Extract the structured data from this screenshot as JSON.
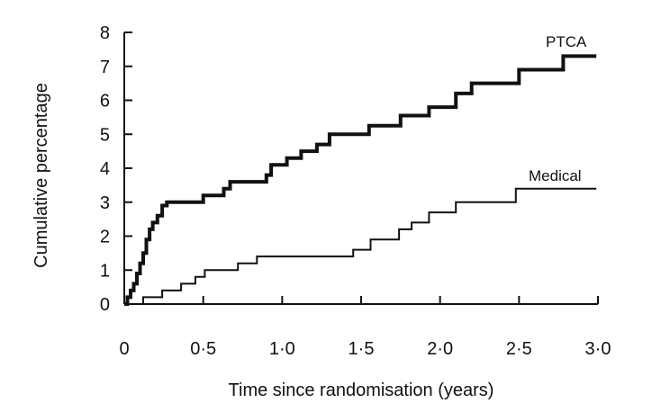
{
  "chart_data": {
    "type": "line",
    "title": "",
    "xlabel": "Time since randomisation (years)",
    "ylabel": "Cumulative percentage",
    "xlim": [
      0,
      3.0
    ],
    "ylim": [
      0,
      8
    ],
    "xticks": [
      0,
      0.5,
      1.0,
      1.5,
      2.0,
      2.5,
      3.0
    ],
    "xtick_labels": [
      "0",
      "0·5",
      "1·0",
      "1·5",
      "2·0",
      "2·5",
      "3·0"
    ],
    "yticks": [
      0,
      1,
      2,
      3,
      4,
      5,
      6,
      7,
      8
    ],
    "ytick_labels": [
      "0",
      "1",
      "2",
      "3",
      "4",
      "5",
      "6",
      "7",
      "8"
    ],
    "grid": false,
    "series": [
      {
        "name": "PTCA",
        "color": "#111111",
        "step": true,
        "bold": true,
        "x": [
          0,
          0.02,
          0.04,
          0.06,
          0.08,
          0.1,
          0.12,
          0.14,
          0.16,
          0.18,
          0.21,
          0.24,
          0.27,
          0.5,
          0.63,
          0.67,
          0.9,
          0.93,
          1.03,
          1.12,
          1.22,
          1.3,
          1.4,
          1.55,
          1.75,
          1.93,
          2.1,
          2.2,
          2.5,
          2.78,
          2.99
        ],
        "y": [
          0,
          0.2,
          0.4,
          0.6,
          0.9,
          1.2,
          1.5,
          1.9,
          2.2,
          2.4,
          2.6,
          2.9,
          3.0,
          3.2,
          3.4,
          3.6,
          3.8,
          4.1,
          4.3,
          4.5,
          4.7,
          5.0,
          5.0,
          5.25,
          5.55,
          5.8,
          6.2,
          6.5,
          6.9,
          7.3,
          7.3
        ]
      },
      {
        "name": "Medical",
        "color": "#111111",
        "step": true,
        "bold": false,
        "x": [
          0,
          0.12,
          0.24,
          0.36,
          0.45,
          0.51,
          0.72,
          0.84,
          1.27,
          1.45,
          1.56,
          1.74,
          1.82,
          1.93,
          2.1,
          2.48,
          2.99
        ],
        "y": [
          0,
          0.2,
          0.4,
          0.6,
          0.8,
          1.0,
          1.2,
          1.4,
          1.4,
          1.6,
          1.9,
          2.2,
          2.4,
          2.7,
          3.0,
          3.4,
          3.4
        ]
      }
    ]
  }
}
